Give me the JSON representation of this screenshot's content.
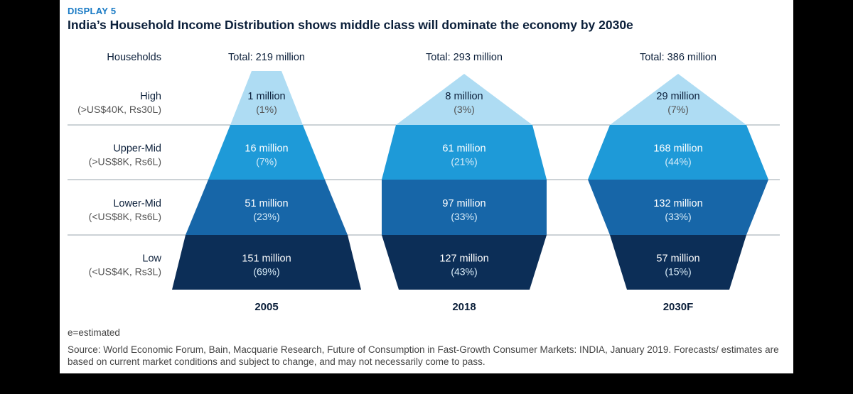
{
  "header": {
    "display_label": "DISPLAY 5",
    "title": "India’s Household Income Distribution shows middle class will dominate the economy by 2030e"
  },
  "colors": {
    "high": "#aedcf3",
    "upper_mid": "#1e9ad8",
    "lower_mid": "#1766a8",
    "low": "#0c2e57",
    "grid": "#9aa4ae",
    "text_dark": "#0b1f3a",
    "text_grey": "#555555"
  },
  "chart_data": {
    "type": "table",
    "row_header": "Households",
    "rows": [
      {
        "name": "High",
        "note": "(>US$40K, Rs30L)"
      },
      {
        "name": "Upper-Mid",
        "note": "(>US$8K, Rs6L)"
      },
      {
        "name": "Lower-Mid",
        "note": "(<US$8K, Rs6L)"
      },
      {
        "name": "Low",
        "note": "(<US$4K, Rs3L)"
      }
    ],
    "columns": [
      {
        "year": "2005",
        "total": "Total: 219 million",
        "values": [
          "1 million",
          "16 million",
          "51 million",
          "151 million"
        ],
        "shares": [
          "(1%)",
          "(7%)",
          "(23%)",
          "(69%)"
        ]
      },
      {
        "year": "2018",
        "total": "Total: 293 million",
        "values": [
          "8 million",
          "61 million",
          "97 million",
          "127 million"
        ],
        "shares": [
          "(3%)",
          "(21%)",
          "(33%)",
          "(43%)"
        ]
      },
      {
        "year": "2030F",
        "total": "Total: 386 million",
        "values": [
          "29 million",
          "168 million",
          "132 million",
          "57 million"
        ],
        "shares": [
          "(7%)",
          "(44%)",
          "(33%)",
          "(15%)"
        ]
      }
    ]
  },
  "footer": {
    "footnote": "e=estimated",
    "source": "Source: World Economic Forum, Bain, Macquarie Research, Future of Consumption in Fast-Growth Consumer Markets: INDIA, January 2019. Forecasts/ estimates are based on current market conditions and subject to change, and may not necessarily come to pass."
  }
}
